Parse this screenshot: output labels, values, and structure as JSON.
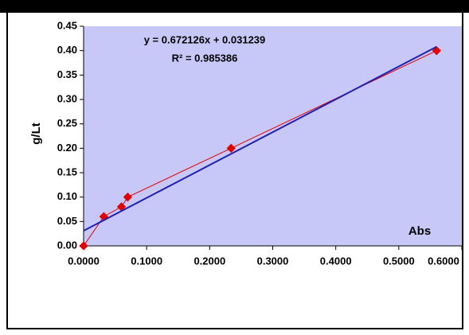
{
  "chart_data": {
    "type": "scatter",
    "ylabel": "g/Lt",
    "xlabel": "Abs",
    "annotations": [
      "y = 0.672126x + 0.031239",
      "R² = 0.985386"
    ],
    "series": [
      {
        "color": "#e00000",
        "marker": true,
        "x": [
          0,
          0.032,
          0.06,
          0.07,
          0.234,
          0.56
        ],
        "values": [
          0,
          0.06,
          0.08,
          0.1,
          0.2,
          0.4
        ]
      },
      {
        "color": "#2020b0",
        "marker": false,
        "x": [
          0,
          0.56
        ],
        "values": [
          0.031,
          0.408
        ]
      }
    ],
    "xlim": [
      0,
      0.6
    ],
    "xticks": [
      {
        "value": 0,
        "label": "0.0000"
      },
      {
        "value": 0.1,
        "label": "0.1000"
      },
      {
        "value": 0.2,
        "label": "0.2000"
      },
      {
        "value": 0.3,
        "label": "0.3000"
      },
      {
        "value": 0.4,
        "label": "0.4000"
      },
      {
        "value": 0.5,
        "label": "0.5000"
      },
      {
        "value": 0.6,
        "label": "0.6000"
      }
    ],
    "ylim": [
      0,
      0.45
    ],
    "yticks": [
      {
        "value": 0,
        "label": "0.00"
      },
      {
        "value": 0.05,
        "label": "0.05"
      },
      {
        "value": 0.1,
        "label": "0.10"
      },
      {
        "value": 0.15,
        "label": "0.15"
      },
      {
        "value": 0.2,
        "label": "0.20"
      },
      {
        "value": 0.25,
        "label": "0.25"
      },
      {
        "value": 0.3,
        "label": "0.30"
      },
      {
        "value": 0.35,
        "label": "0.35"
      },
      {
        "value": 0.4,
        "label": "0.40"
      },
      {
        "value": 0.45,
        "label": "0.45"
      }
    ],
    "background": "#c8c8f8"
  }
}
